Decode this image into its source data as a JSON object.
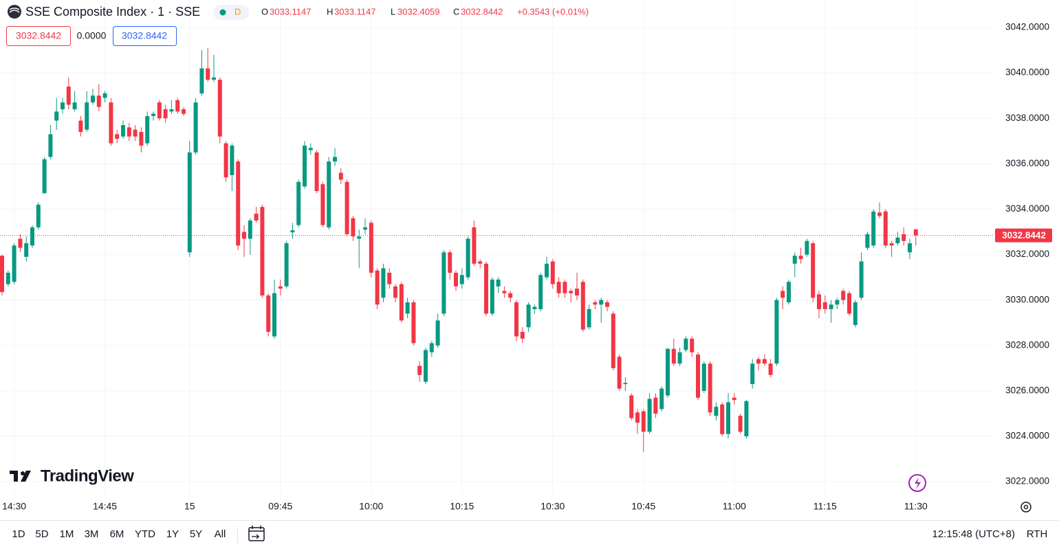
{
  "header": {
    "symbol": "SSE Composite Index · 1 · SSE",
    "badge": "D",
    "ohlc": [
      {
        "label": "O",
        "value": "3033.1147"
      },
      {
        "label": "H",
        "value": "3033.1147"
      },
      {
        "label": "L",
        "value": "3032.4059"
      },
      {
        "label": "C",
        "value": "3032.8442"
      }
    ],
    "change": "+0.3543 (+0.01%)",
    "boxes": [
      "3032.8442",
      "0.0000",
      "3032.8442"
    ]
  },
  "logo": "TradingView",
  "footer": {
    "ranges": [
      "1D",
      "5D",
      "1M",
      "3M",
      "6M",
      "YTD",
      "1Y",
      "5Y",
      "All"
    ],
    "clock": "12:15:48 (UTC+8)",
    "session": "RTH"
  },
  "chart_data": {
    "type": "candlestick",
    "up_color": "#089981",
    "down_color": "#f23645",
    "grid": true,
    "categories": [
      null,
      null,
      "14:30",
      null,
      null,
      null,
      null,
      null,
      null,
      null,
      null,
      null,
      null,
      null,
      null,
      null,
      null,
      "14:45",
      null,
      null,
      null,
      null,
      null,
      null,
      null,
      null,
      null,
      null,
      null,
      null,
      null,
      "15",
      null,
      null,
      null,
      null,
      null,
      null,
      null,
      null,
      null,
      null,
      null,
      null,
      null,
      null,
      "09:45",
      null,
      null,
      null,
      null,
      null,
      null,
      null,
      null,
      null,
      null,
      null,
      null,
      null,
      null,
      "10:00",
      null,
      null,
      null,
      null,
      null,
      null,
      null,
      null,
      null,
      null,
      null,
      null,
      null,
      null,
      "10:15",
      null,
      null,
      null,
      null,
      null,
      null,
      null,
      null,
      null,
      null,
      null,
      null,
      null,
      null,
      "10:30",
      null,
      null,
      null,
      null,
      null,
      null,
      null,
      null,
      null,
      null,
      null,
      null,
      null,
      null,
      "10:45",
      null,
      null,
      null,
      null,
      null,
      null,
      null,
      null,
      null,
      null,
      null,
      null,
      null,
      null,
      "11:00",
      null,
      null,
      null,
      null,
      null,
      null,
      null,
      null,
      null,
      null,
      null,
      null,
      null,
      null,
      "11:15",
      null,
      null,
      null,
      null,
      null,
      null,
      null,
      null,
      null,
      null,
      null,
      null,
      null,
      null,
      "11:30"
    ],
    "open": [
      3031.95,
      3030.7,
      3030.8,
      3032.7,
      3031.9,
      3032.4,
      3033.2,
      3034.7,
      3036.3,
      3037.9,
      3038.4,
      3039.4,
      3038.4,
      3037.9,
      3037.5,
      3038.7,
      3039.0,
      3038.9,
      3038.7,
      3037.3,
      3037.2,
      3037.6,
      3037.5,
      3037.4,
      3036.9,
      3038.1,
      3038.7,
      3038.4,
      3038.3,
      3038.8,
      3038.4,
      3032.1,
      3036.5,
      3039.1,
      3040.2,
      3039.7,
      3039.7,
      3036.9,
      3035.5,
      3036.1,
      3033.0,
      3032.7,
      3033.8,
      3034.1,
      3030.2,
      3028.4,
      3030.6,
      3030.6,
      3032.98,
      3033.3,
      3035.0,
      3036.6,
      3036.5,
      3035.1,
      3033.2,
      3036.1,
      3035.6,
      3035.2,
      3033.6,
      3032.7,
      3033.1,
      3033.4,
      3031.3,
      3030.1,
      3031.2,
      3030.6,
      3030.7,
      3029.4,
      3029.9,
      3027.1,
      3026.4,
      3027.7,
      3028.0,
      3029.4,
      3032.1,
      3031.2,
      3030.7,
      3031.0,
      3033.2,
      3031.7,
      3031.6,
      3029.4,
      3030.6,
      3030.4,
      3030.3,
      3029.9,
      3028.6,
      3028.8,
      3029.6,
      3029.6,
      3031.0,
      3031.7,
      3030.8,
      3030.8,
      3030.4,
      3030.5,
      3030.8,
      3028.8,
      3029.9,
      3029.8,
      3029.9,
      3029.4,
      3027.5,
      3026.3,
      3025.8,
      3025.05,
      3025.1,
      3024.2,
      3025.7,
      3025.2,
      3025.8,
      3027.85,
      3027.2,
      3027.8,
      3028.3,
      3027.6,
      3026.0,
      3027.2,
      3024.9,
      3025.4,
      3024.1,
      3025.7,
      3024.9,
      3024.0,
      3026.3,
      3027.4,
      3027.4,
      3027.2,
      3027.2,
      3030.4,
      3029.9,
      3031.6,
      3031.95,
      3032.0,
      3032.5,
      3030.25,
      3029.9,
      3029.6,
      3029.8,
      3030.4,
      3030.3,
      3028.9,
      3030.1,
      3032.3,
      3032.4,
      3033.85,
      3033.9,
      3032.5,
      3032.5,
      3032.9,
      3032.1,
      3033.1147
    ],
    "high": [
      3032.0,
      3031.3,
      3032.5,
      3032.9,
      3032.8,
      3033.3,
      3034.3,
      3036.3,
      3037.7,
      3038.9,
      3038.9,
      3039.8,
      3039.2,
      3038.1,
      3039.2,
      3039.3,
      3039.5,
      3039.2,
      3038.9,
      3037.5,
      3037.9,
      3037.8,
      3037.7,
      3037.6,
      3038.3,
      3038.3,
      3038.8,
      3038.6,
      3038.8,
      3038.9,
      3038.5,
      3037.0,
      3038.9,
      3041.0,
      3041.1,
      3040.8,
      3039.8,
      3037.0,
      3036.9,
      3036.2,
      3033.3,
      3033.6,
      3034.1,
      3034.2,
      3030.3,
      3030.9,
      3030.9,
      3032.6,
      3033.4,
      3035.3,
      3037.0,
      3036.9,
      3036.6,
      3035.2,
      3036.3,
      3036.7,
      3035.8,
      3035.3,
      3033.7,
      3033.1,
      3033.6,
      3033.5,
      3031.4,
      3031.6,
      3031.4,
      3030.7,
      3030.8,
      3030.1,
      3030.0,
      3027.3,
      3027.9,
      3028.2,
      3029.4,
      3032.2,
      3032.2,
      3031.3,
      3031.4,
      3032.8,
      3033.5,
      3031.8,
      3031.7,
      3031.0,
      3031.0,
      3030.6,
      3030.4,
      3030.0,
      3028.8,
      3029.9,
      3029.8,
      3031.2,
      3031.9,
      3031.8,
      3031.0,
      3030.9,
      3030.5,
      3031.2,
      3030.9,
      3029.8,
      3030.0,
      3030.1,
      3030.0,
      3029.5,
      3027.6,
      3026.6,
      3025.9,
      3025.2,
      3025.2,
      3025.9,
      3025.9,
      3026.2,
      3027.9,
      3028.3,
      3027.9,
      3028.4,
      3028.4,
      3027.7,
      3027.3,
      3027.3,
      3025.5,
      3025.5,
      3025.9,
      3025.9,
      3025.0,
      3025.6,
      3027.4,
      3027.5,
      3027.6,
      3027.4,
      3030.1,
      3030.6,
      3030.9,
      3032.1,
      3032.3,
      3032.7,
      3032.6,
      3030.4,
      3030.2,
      3030.0,
      3030.1,
      3030.5,
      3030.4,
      3030.0,
      3032.1,
      3033.0,
      3034.0,
      3034.3,
      3034.0,
      3032.6,
      3033.0,
      3033.2,
      3032.7,
      3033.1147
    ],
    "low": [
      3030.2,
      3030.6,
      3030.7,
      3032.1,
      3031.7,
      3032.3,
      3033.1,
      3034.7,
      3036.2,
      3037.5,
      3038.2,
      3038.4,
      3038.3,
      3037.2,
      3037.4,
      3038.6,
      3038.3,
      3038.7,
      3036.8,
      3036.9,
      3037.1,
      3037.0,
      3037.0,
      3036.5,
      3036.8,
      3037.9,
      3037.9,
      3037.8,
      3038.2,
      3038.2,
      3038.1,
      3031.9,
      3036.4,
      3039.0,
      3039.6,
      3039.6,
      3036.9,
      3035.2,
      3034.8,
      3032.2,
      3031.9,
      3032.0,
      3033.4,
      3030.1,
      3028.4,
      3028.3,
      3030.2,
      3030.5,
      3032.7,
      3033.2,
      3034.9,
      3036.4,
      3034.7,
      3033.2,
      3033.1,
      3035.9,
      3035.1,
      3032.8,
      3032.6,
      3031.4,
      3032.9,
      3031.0,
      3029.6,
      3029.9,
      3030.5,
      3029.9,
      3029.0,
      3029.2,
      3028.0,
      3026.4,
      3026.3,
      3027.5,
      3027.9,
      3029.3,
      3030.9,
      3030.4,
      3030.5,
      3030.9,
      3031.5,
      3031.4,
      3029.3,
      3029.3,
      3030.3,
      3030.1,
      3029.9,
      3028.2,
      3028.1,
      3028.6,
      3029.4,
      3029.5,
      3030.9,
      3030.5,
      3030.1,
      3030.1,
      3029.9,
      3030.0,
      3028.6,
      3028.7,
      3029.6,
      3029.0,
      3029.5,
      3026.9,
      3026.0,
      3026.0,
      3024.7,
      3024.1,
      3023.3,
      3024.1,
      3024.8,
      3025.1,
      3025.7,
      3027.1,
      3027.1,
      3027.7,
      3027.5,
      3025.6,
      3025.9,
      3024.9,
      3024.7,
      3024.0,
      3023.9,
      3025.4,
      3024.1,
      3023.9,
      3026.1,
      3026.9,
      3027.1,
      3026.6,
      3027.1,
      3029.6,
      3029.8,
      3031.0,
      3031.6,
      3031.9,
      3029.9,
      3029.2,
      3029.4,
      3029.0,
      3029.6,
      3029.8,
      3029.3,
      3028.8,
      3030.0,
      3032.2,
      3032.3,
      3033.6,
      3032.3,
      3031.9,
      3032.4,
      3032.4,
      3031.8,
      3032.4059
    ],
    "close": [
      3030.35,
      3031.2,
      3032.4,
      3032.3,
      3032.5,
      3033.2,
      3034.2,
      3036.2,
      3037.3,
      3038.3,
      3038.7,
      3038.6,
      3038.7,
      3037.4,
      3038.7,
      3039.0,
      3038.5,
      3039.1,
      3036.9,
      3037.1,
      3037.7,
      3037.2,
      3037.2,
      3036.8,
      3038.1,
      3038.2,
      3038.0,
      3038.0,
      3038.4,
      3038.3,
      3038.2,
      3036.5,
      3038.7,
      3040.2,
      3039.7,
      3039.8,
      3037.2,
      3035.4,
      3036.8,
      3032.4,
      3032.7,
      3033.5,
      3033.5,
      3030.2,
      3028.6,
      3030.3,
      3030.5,
      3032.5,
      3033.07,
      3035.2,
      3036.8,
      3036.7,
      3034.8,
      3033.3,
      3036.1,
      3036.3,
      3035.3,
      3032.9,
      3032.8,
      3032.8,
      3033.2,
      3031.2,
      3029.8,
      3031.4,
      3030.7,
      3030.1,
      3029.1,
      3029.9,
      3028.1,
      3026.7,
      3027.8,
      3028.1,
      3029.1,
      3032.1,
      3031.2,
      3030.6,
      3031.1,
      3032.7,
      3031.6,
      3031.6,
      3029.4,
      3030.9,
      3030.9,
      3030.3,
      3030.1,
      3028.4,
      3028.3,
      3029.8,
      3029.7,
      3031.1,
      3031.6,
      3030.7,
      3030.3,
      3030.3,
      3030.3,
      3030.2,
      3028.7,
      3029.6,
      3029.8,
      3030.0,
      3029.7,
      3027.0,
      3026.1,
      3026.35,
      3024.8,
      3024.6,
      3024.2,
      3025.65,
      3025.0,
      3026.1,
      3027.85,
      3027.2,
      3027.7,
      3028.3,
      3027.7,
      3025.7,
      3027.2,
      3025.05,
      3025.3,
      3024.1,
      3025.5,
      3025.6,
      3024.2,
      3025.55,
      3027.2,
      3027.2,
      3027.2,
      3026.7,
      3030.0,
      3030.1,
      3030.8,
      3031.95,
      3031.8,
      3032.6,
      3030.1,
      3029.6,
      3029.6,
      3029.8,
      3030.0,
      3030.0,
      3029.4,
      3029.9,
      3031.7,
      3032.9,
      3033.9,
      3033.7,
      3032.4,
      3032.4,
      3032.75,
      3032.6,
      3032.5,
      3032.8442
    ],
    "ylim": [
      3021.43,
      3043.21
    ],
    "yticks": [
      {
        "value": 3022,
        "label": "3022.0000"
      },
      {
        "value": 3024,
        "label": "3024.0000"
      },
      {
        "value": 3026,
        "label": "3026.0000"
      },
      {
        "value": 3028,
        "label": "3028.0000"
      },
      {
        "value": 3030,
        "label": "3030.0000"
      },
      {
        "value": 3032,
        "label": "3032.0000"
      },
      {
        "value": 3034,
        "label": "3034.0000"
      },
      {
        "value": 3036,
        "label": "3036.0000"
      },
      {
        "value": 3038,
        "label": "3038.0000"
      },
      {
        "value": 3040,
        "label": "3040.0000"
      },
      {
        "value": 3042,
        "label": "3042.0000"
      }
    ],
    "last_price": {
      "value": 3032.8442,
      "label": "3032.8442"
    }
  }
}
